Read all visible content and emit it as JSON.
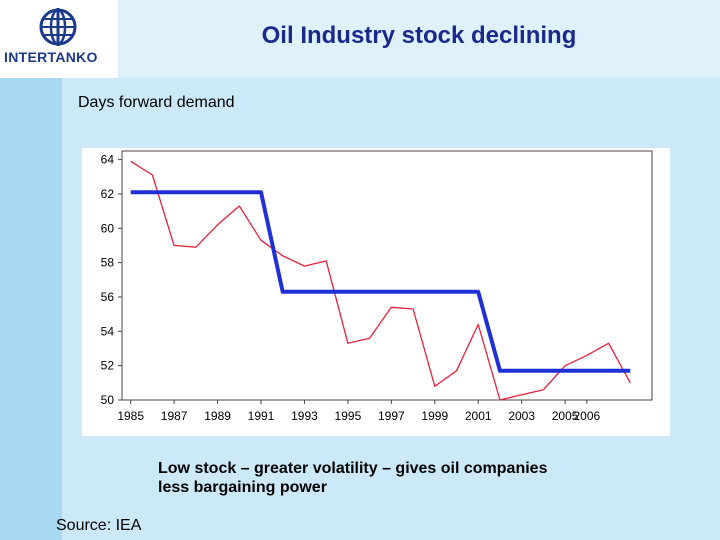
{
  "slide": {
    "title": "Oil Industry stock declining",
    "subtitle": "Days forward demand",
    "caption_line1": "Low stock – greater volatility – gives oil companies",
    "caption_line2": "less bargaining power",
    "source": "Source: IEA"
  },
  "logo": {
    "text": "INTERTANKO",
    "icon": "globe-icon",
    "color": "#1b3a8c"
  },
  "chart_data": {
    "type": "line",
    "title": "",
    "xlabel": "",
    "ylabel": "",
    "x_tick_labels": [
      "1985",
      "1987",
      "1989",
      "1991",
      "1993",
      "1995",
      "1997",
      "1999",
      "2001",
      "2003",
      "2005",
      "2006"
    ],
    "y_ticks": [
      50,
      52,
      54,
      56,
      58,
      60,
      62,
      64
    ],
    "ylim": [
      50,
      64.5
    ],
    "grid": false,
    "legend": "none",
    "series": [
      {
        "color": "#e8213a",
        "points": [
          [
            1985,
            63.9
          ],
          [
            1986,
            63.1
          ],
          [
            1987,
            59.0
          ],
          [
            1988,
            58.9
          ],
          [
            1989,
            60.2
          ],
          [
            1990,
            61.3
          ],
          [
            1991,
            59.3
          ],
          [
            1992,
            58.4
          ],
          [
            1993,
            57.8
          ],
          [
            1994,
            58.1
          ],
          [
            1995,
            53.3
          ],
          [
            1996,
            53.6
          ],
          [
            1997,
            55.4
          ],
          [
            1998,
            55.3
          ],
          [
            1999,
            50.8
          ],
          [
            2000,
            51.7
          ],
          [
            2001,
            54.4
          ],
          [
            2002,
            50.0
          ],
          [
            2003,
            50.3
          ],
          [
            2004,
            50.6
          ],
          [
            2005,
            52.0
          ],
          [
            2006,
            52.6
          ],
          [
            2007,
            53.3
          ],
          [
            2008,
            51.0
          ]
        ]
      },
      {
        "color": "#1f30d6",
        "points": [
          [
            1985,
            62.1
          ],
          [
            1991,
            62.1
          ],
          [
            1992,
            56.3
          ],
          [
            2001,
            56.3
          ],
          [
            2002,
            51.7
          ],
          [
            2008,
            51.7
          ]
        ]
      }
    ]
  }
}
